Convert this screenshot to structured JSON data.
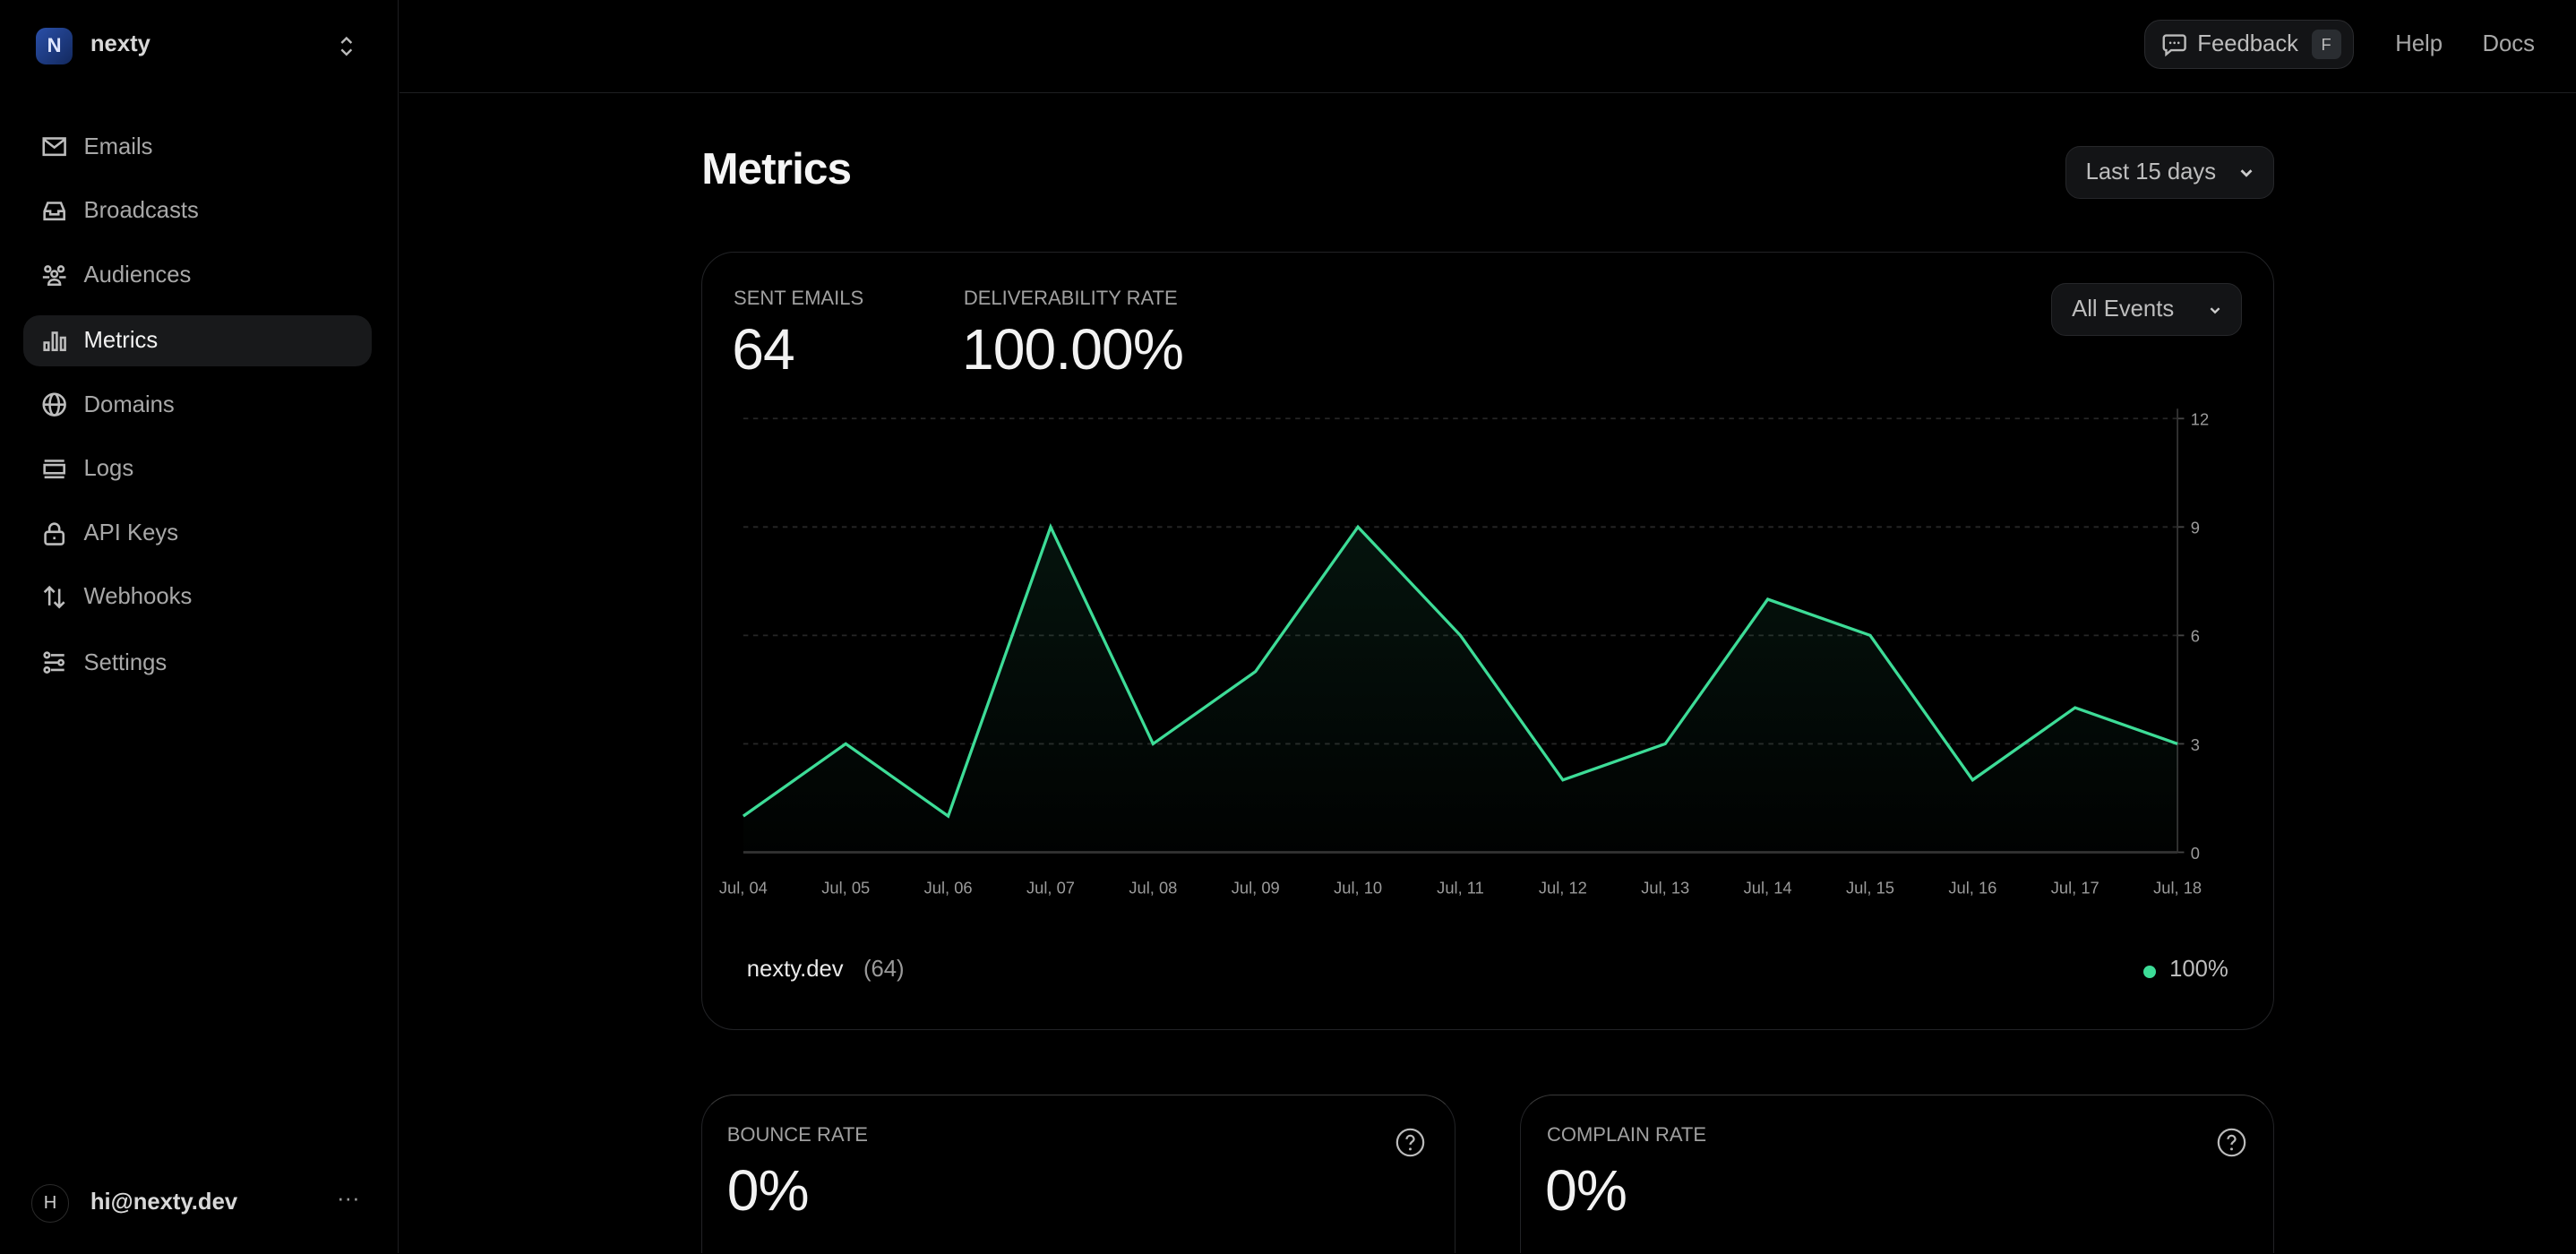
{
  "sidebar": {
    "team": {
      "initial": "N",
      "name": "nexty"
    },
    "items": [
      {
        "label": "Emails",
        "icon": "mail-icon"
      },
      {
        "label": "Broadcasts",
        "icon": "inbox-icon"
      },
      {
        "label": "Audiences",
        "icon": "users-icon"
      },
      {
        "label": "Metrics",
        "icon": "bar-chart-icon",
        "active": true
      },
      {
        "label": "Domains",
        "icon": "globe-icon"
      },
      {
        "label": "Logs",
        "icon": "logs-icon"
      },
      {
        "label": "API Keys",
        "icon": "lock-icon"
      },
      {
        "label": "Webhooks",
        "icon": "arrows-up-down-icon"
      },
      {
        "label": "Settings",
        "icon": "sliders-icon"
      }
    ],
    "user": {
      "initial": "H",
      "email": "hi@nexty.dev",
      "more": "···"
    }
  },
  "topbar": {
    "feedback": "Feedback",
    "feedback_key": "F",
    "help": "Help",
    "docs": "Docs"
  },
  "page": {
    "title": "Metrics",
    "range": "Last 15 days"
  },
  "summary": {
    "sent_label": "Sent Emails",
    "sent_value": "64",
    "deliv_label": "Deliverability Rate",
    "deliv_value": "100.00%",
    "events_filter": "All Events"
  },
  "legend": {
    "domain": "nexty.dev",
    "count": "(64)",
    "rate": "100%",
    "color": "#3ddc97"
  },
  "bounce": {
    "label": "Bounce Rate",
    "value": "0%"
  },
  "complain": {
    "label": "Complain Rate",
    "value": "0%"
  },
  "chart_data": {
    "type": "area",
    "categories": [
      "Jul, 04",
      "Jul, 05",
      "Jul, 06",
      "Jul, 07",
      "Jul, 08",
      "Jul, 09",
      "Jul, 10",
      "Jul, 11",
      "Jul, 12",
      "Jul, 13",
      "Jul, 14",
      "Jul, 15",
      "Jul, 16",
      "Jul, 17",
      "Jul, 18"
    ],
    "values": [
      1,
      3,
      1,
      9,
      3,
      5,
      9,
      6,
      2,
      3,
      7,
      6,
      2,
      4,
      3
    ],
    "ylim": [
      0,
      12
    ],
    "yticks": [
      0,
      3,
      6,
      9,
      12
    ],
    "grid": true,
    "y_axis_side": "right",
    "color": "#3ddc97"
  }
}
